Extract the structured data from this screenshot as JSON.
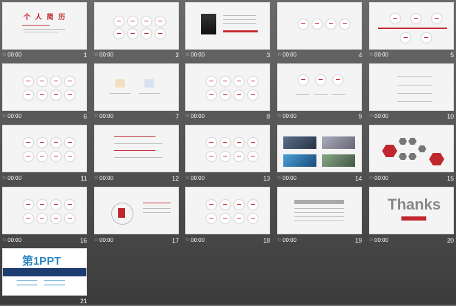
{
  "slides": [
    {
      "num": "1",
      "time": "00:00",
      "title": "个 人 简 历"
    },
    {
      "num": "2",
      "time": "00:00"
    },
    {
      "num": "3",
      "time": "00:00"
    },
    {
      "num": "4",
      "time": "00:00"
    },
    {
      "num": "5",
      "time": "00:00"
    },
    {
      "num": "6",
      "time": "00:00"
    },
    {
      "num": "7",
      "time": "00:00"
    },
    {
      "num": "8",
      "time": "00:00"
    },
    {
      "num": "9",
      "time": "00:00"
    },
    {
      "num": "10",
      "time": "00:00"
    },
    {
      "num": "11",
      "time": "00:00"
    },
    {
      "num": "12",
      "time": "00:00"
    },
    {
      "num": "13",
      "time": "00:00"
    },
    {
      "num": "14",
      "time": "00:00"
    },
    {
      "num": "15",
      "time": "00:00"
    },
    {
      "num": "16",
      "time": "00:00"
    },
    {
      "num": "17",
      "time": "00:00"
    },
    {
      "num": "18",
      "time": "00:00"
    },
    {
      "num": "19",
      "time": "00:00"
    },
    {
      "num": "20",
      "time": "00:00",
      "title": "Thanks"
    },
    {
      "num": "21",
      "time": "",
      "title": "第1PPT"
    }
  ],
  "colors": {
    "accent": "#c0272d",
    "background": "#4f4f4f"
  }
}
